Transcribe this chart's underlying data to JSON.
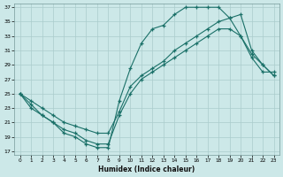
{
  "xlabel": "Humidex (Indice chaleur)",
  "bg_color": "#cce8e8",
  "grid_color": "#aacccc",
  "line_color": "#1a7068",
  "xlim": [
    -0.5,
    23.5
  ],
  "ylim": [
    16.5,
    37.5
  ],
  "xticks": [
    0,
    1,
    2,
    3,
    4,
    5,
    6,
    7,
    8,
    9,
    10,
    11,
    12,
    13,
    14,
    15,
    16,
    17,
    18,
    19,
    20,
    21,
    22,
    23
  ],
  "yticks": [
    17,
    19,
    21,
    23,
    25,
    27,
    29,
    31,
    33,
    35,
    37
  ],
  "line1_x": [
    0,
    1,
    2,
    3,
    4,
    5,
    6,
    7,
    8,
    9,
    10,
    11,
    12,
    13,
    14,
    15,
    16,
    17,
    18,
    19,
    20,
    21,
    22,
    23
  ],
  "line1_y": [
    25,
    23,
    22,
    21,
    19.5,
    19,
    18,
    17.5,
    17.5,
    24,
    28.5,
    32,
    34,
    34.5,
    36,
    37,
    37,
    37,
    37,
    35.5,
    33,
    30.5,
    29,
    27.5
  ],
  "line2_x": [
    0,
    1,
    2,
    3,
    4,
    5,
    6,
    7,
    8,
    9,
    10,
    11,
    12,
    13,
    14,
    15,
    16,
    17,
    18,
    19,
    20,
    21,
    22,
    23
  ],
  "line2_y": [
    25,
    23.5,
    22,
    21,
    20,
    19.5,
    18.5,
    18,
    18,
    22,
    25,
    27,
    28,
    29,
    30,
    31,
    32,
    33,
    34,
    34,
    33,
    30,
    28,
    28
  ],
  "line3_x": [
    0,
    1,
    2,
    3,
    4,
    5,
    6,
    7,
    8,
    9,
    10,
    11,
    12,
    13,
    14,
    15,
    16,
    17,
    18,
    19,
    20,
    21,
    22,
    23
  ],
  "line3_y": [
    25,
    24,
    23,
    22,
    21,
    20.5,
    20,
    19.5,
    19.5,
    22.5,
    26,
    27.5,
    28.5,
    29.5,
    31,
    32,
    33,
    34,
    35,
    35.5,
    36,
    31,
    29,
    27.5
  ]
}
